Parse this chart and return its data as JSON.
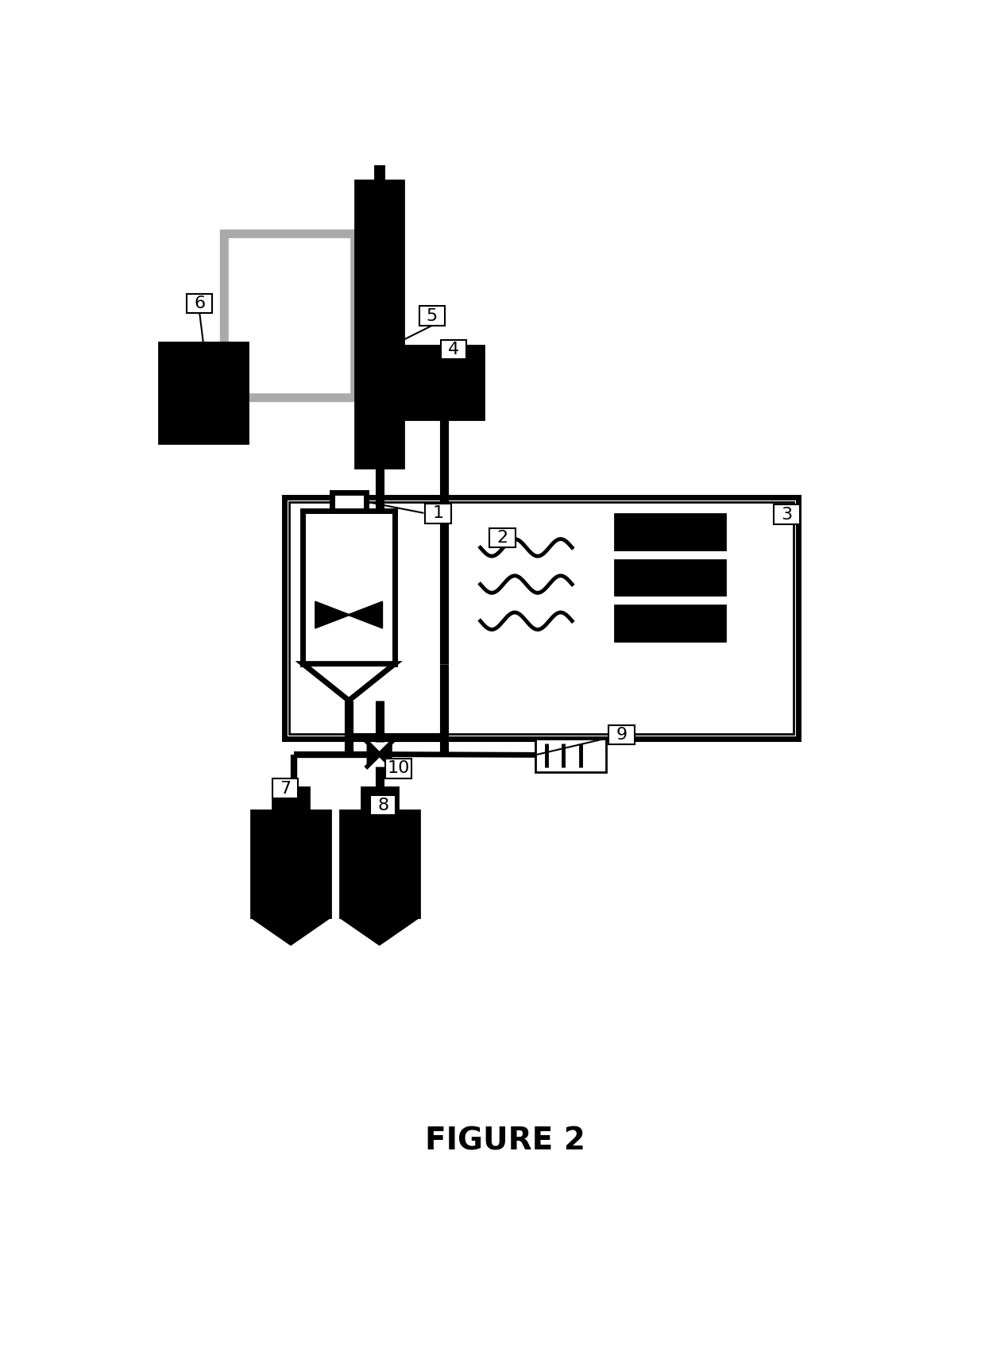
{
  "title": "FIGURE 2",
  "bg_color": "#ffffff",
  "black": "#000000",
  "gray": "#aaaaaa",
  "dark_gray": "#666666",
  "figsize": [
    12.4,
    17.02
  ],
  "dpi": 100
}
